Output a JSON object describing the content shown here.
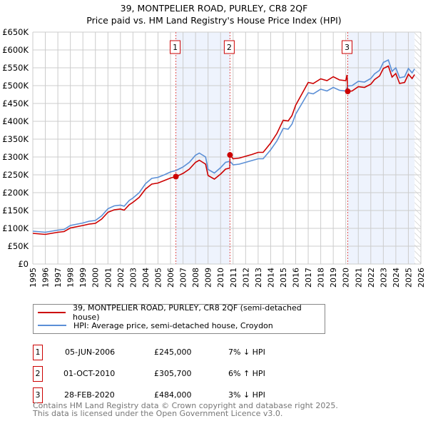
{
  "chart_data": {
    "type": "line",
    "title": "39, MONTPELIER ROAD, PURLEY, CR8 2QF",
    "subtitle": "Price paid vs. HM Land Registry's House Price Index (HPI)",
    "xlim": [
      1995,
      2026
    ],
    "ylim": [
      0,
      650000
    ],
    "yticks": [
      0,
      50000,
      100000,
      150000,
      200000,
      250000,
      300000,
      350000,
      400000,
      450000,
      500000,
      550000,
      600000,
      650000
    ],
    "ytick_labels": [
      "£0",
      "£50K",
      "£100K",
      "£150K",
      "£200K",
      "£250K",
      "£300K",
      "£350K",
      "£400K",
      "£450K",
      "£500K",
      "£550K",
      "£600K",
      "£650K"
    ],
    "xticks": [
      1995,
      1996,
      1997,
      1998,
      1999,
      2000,
      2001,
      2002,
      2003,
      2004,
      2005,
      2006,
      2007,
      2008,
      2009,
      2010,
      2011,
      2012,
      2013,
      2014,
      2015,
      2016,
      2017,
      2018,
      2019,
      2020,
      2021,
      2022,
      2023,
      2024,
      2025,
      2026
    ],
    "xtick_labels": [
      "1995",
      "1996",
      "1997",
      "1998",
      "1999",
      "2000",
      "2001",
      "2002",
      "2003",
      "2004",
      "2005",
      "2006",
      "2007",
      "2008",
      "2009",
      "2010",
      "2011",
      "2012",
      "2013",
      "2014",
      "2015",
      "2016",
      "2017",
      "2018",
      "2019",
      "2020",
      "2021",
      "2022",
      "2023",
      "2024",
      "2025",
      "2026"
    ],
    "grid": true,
    "shaded_ranges": [
      [
        2006.43,
        2010.75
      ],
      [
        2020.16,
        2025.5
      ]
    ],
    "hatched_from": 2025.5,
    "series": [
      {
        "name": "39, MONTPELIER ROAD, PURLEY, CR8 2QF (semi-detached house)",
        "color": "#cc0000",
        "x": [
          1995,
          1996,
          1997,
          1997.5,
          1998,
          1999,
          1999.5,
          2000,
          2000.5,
          2001,
          2001.5,
          2002,
          2002.3,
          2002.7,
          2003,
          2003.5,
          2004,
          2004.5,
          2005,
          2005.5,
          2006,
          2006.43,
          2007,
          2007.5,
          2008,
          2008.3,
          2008.8,
          2009,
          2009.5,
          2010,
          2010.4,
          2010.74,
          2010.75,
          2011,
          2011.5,
          2012,
          2012.5,
          2013,
          2013.4,
          2014,
          2014.5,
          2015,
          2015.4,
          2015.7,
          2016,
          2016.5,
          2017,
          2017.4,
          2018,
          2018.5,
          2019,
          2019.5,
          2020,
          2020.1,
          2020.16,
          2020.5,
          2021,
          2021.5,
          2022,
          2022.3,
          2022.7,
          2023,
          2023.4,
          2023.7,
          2024,
          2024.3,
          2024.7,
          2025,
          2025.3,
          2025.5
        ],
        "y": [
          86000,
          83000,
          89000,
          91000,
          101000,
          108000,
          112000,
          114000,
          126000,
          145000,
          152000,
          154000,
          151000,
          166000,
          173000,
          187000,
          210000,
          224000,
          227000,
          234000,
          241000,
          245000,
          254000,
          266000,
          285000,
          291000,
          280000,
          248000,
          238000,
          252000,
          266000,
          269000,
          305700,
          295000,
          297000,
          302000,
          307000,
          313000,
          313000,
          339000,
          366000,
          403000,
          401000,
          416000,
          445000,
          477000,
          509000,
          506000,
          519000,
          514000,
          525000,
          516000,
          514000,
          530000,
          484000,
          485000,
          497000,
          495000,
          504000,
          517000,
          527000,
          548000,
          555000,
          524000,
          534000,
          506000,
          509000,
          532000,
          520000,
          531000
        ]
      },
      {
        "name": "HPI: Average price, semi-detached house, Croydon",
        "color": "#5b8fd6",
        "x": [
          1995,
          1996,
          1997,
          1997.5,
          1998,
          1999,
          1999.5,
          2000,
          2000.5,
          2001,
          2001.5,
          2002,
          2002.3,
          2002.7,
          2003,
          2003.5,
          2004,
          2004.5,
          2005,
          2005.5,
          2006,
          2006.43,
          2007,
          2007.5,
          2008,
          2008.3,
          2008.8,
          2009,
          2009.5,
          2010,
          2010.4,
          2010.75,
          2011,
          2011.5,
          2012,
          2012.5,
          2013,
          2013.4,
          2014,
          2014.5,
          2015,
          2015.4,
          2015.7,
          2016,
          2016.5,
          2017,
          2017.4,
          2018,
          2018.5,
          2019,
          2019.5,
          2020,
          2020.16,
          2020.5,
          2021,
          2021.5,
          2022,
          2022.3,
          2022.7,
          2023,
          2023.4,
          2023.7,
          2024,
          2024.3,
          2024.7,
          2025,
          2025.3,
          2025.5
        ],
        "y": [
          92000,
          89000,
          95000,
          97000,
          108000,
          115000,
          120000,
          122000,
          135000,
          155000,
          163000,
          165000,
          162000,
          178000,
          185000,
          200000,
          225000,
          240000,
          243000,
          250000,
          258000,
          262000,
          272000,
          285000,
          305000,
          311000,
          300000,
          265000,
          255000,
          270000,
          285000,
          288000,
          278000,
          280000,
          285000,
          290000,
          295000,
          295000,
          320000,
          345000,
          380000,
          378000,
          392000,
          420000,
          450000,
          480000,
          477000,
          490000,
          485000,
          495000,
          487000,
          485000,
          499000,
          500000,
          512000,
          510000,
          520000,
          533000,
          543000,
          565000,
          572000,
          540000,
          550000,
          522000,
          525000,
          548000,
          536000,
          547000
        ]
      }
    ],
    "sales": [
      {
        "label": "1",
        "x": 2006.43,
        "y": 245000
      },
      {
        "label": "2",
        "x": 2010.75,
        "y": 305700
      },
      {
        "label": "3",
        "x": 2020.16,
        "y": 484000
      }
    ]
  },
  "legend": {
    "property": "39, MONTPELIER ROAD, PURLEY, CR8 2QF (semi-detached house)",
    "hpi": "HPI: Average price, semi-detached house, Croydon"
  },
  "table": [
    {
      "num": "1",
      "date": "05-JUN-2006",
      "price": "£245,000",
      "hpi": "7% ↓ HPI"
    },
    {
      "num": "2",
      "date": "01-OCT-2010",
      "price": "£305,700",
      "hpi": "6% ↑ HPI"
    },
    {
      "num": "3",
      "date": "28-FEB-2020",
      "price": "£484,000",
      "hpi": "3% ↓ HPI"
    }
  ],
  "footer": {
    "line1": "Contains HM Land Registry data © Crown copyright and database right 2025.",
    "line2": "This data is licensed under the Open Government Licence v3.0."
  }
}
